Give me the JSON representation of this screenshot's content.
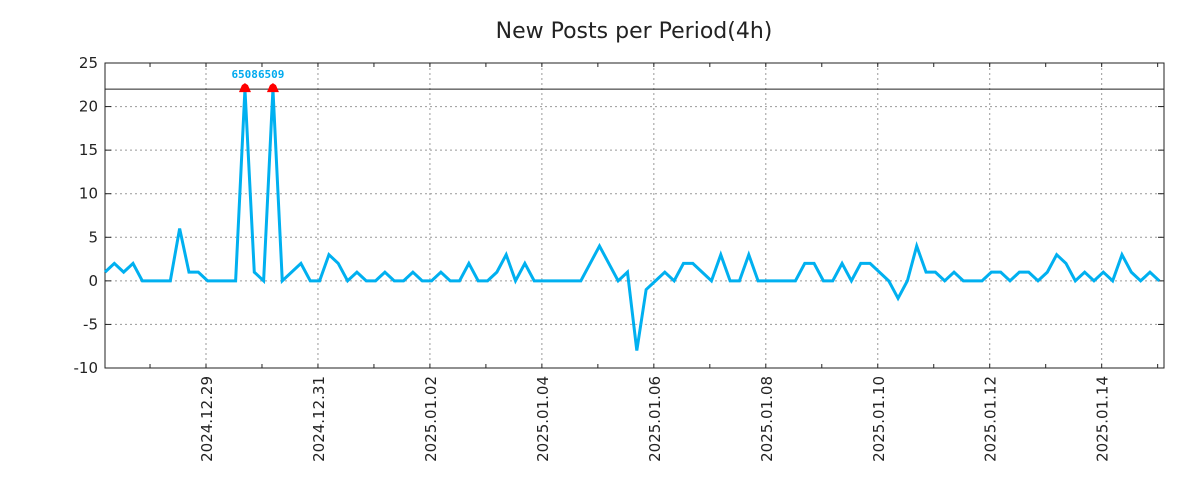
{
  "chart_data": {
    "type": "line",
    "title": "New Posts per Period(4h)",
    "xlabel": "",
    "ylabel": "",
    "ylim": [
      -10,
      25
    ],
    "yticks": [
      25,
      20,
      15,
      10,
      5,
      0,
      -5,
      -10
    ],
    "xtick_labels": [
      "2024.12.29",
      "2024.12.31",
      "2025.01.02",
      "2025.01.04",
      "2025.01.06",
      "2025.01.08",
      "2025.01.10",
      "2025.01.12",
      "2025.01.14"
    ],
    "interval_hours": 4,
    "grid": true,
    "clip_value": 22,
    "series": [
      {
        "name": "New Posts",
        "color": "#00b0f0",
        "values": [
          1,
          2,
          1,
          2,
          0,
          0,
          0,
          0,
          6,
          1,
          1,
          0,
          0,
          0,
          0,
          22,
          1,
          0,
          22,
          0,
          1,
          2,
          0,
          0,
          3,
          2,
          0,
          1,
          0,
          0,
          1,
          0,
          0,
          1,
          0,
          0,
          1,
          0,
          0,
          2,
          0,
          0,
          1,
          3,
          0,
          2,
          0,
          0,
          0,
          0,
          0,
          0,
          2,
          4,
          2,
          0,
          1,
          -8,
          -1,
          0,
          1,
          0,
          2,
          2,
          1,
          0,
          3,
          0,
          0,
          3,
          0,
          0,
          0,
          0,
          0,
          2,
          2,
          0,
          0,
          2,
          0,
          2,
          2,
          1,
          0,
          -2,
          0,
          4,
          1,
          1,
          0,
          1,
          0,
          0,
          0,
          1,
          1,
          0,
          1,
          1,
          0,
          1,
          3,
          2,
          0,
          1,
          0,
          1,
          0,
          3,
          1,
          0,
          1,
          0
        ]
      }
    ],
    "annotations": [
      {
        "index": 15,
        "label": "6508",
        "color": "#ff0000"
      },
      {
        "index": 18,
        "label": "6509",
        "color": "#ff0000"
      }
    ]
  }
}
